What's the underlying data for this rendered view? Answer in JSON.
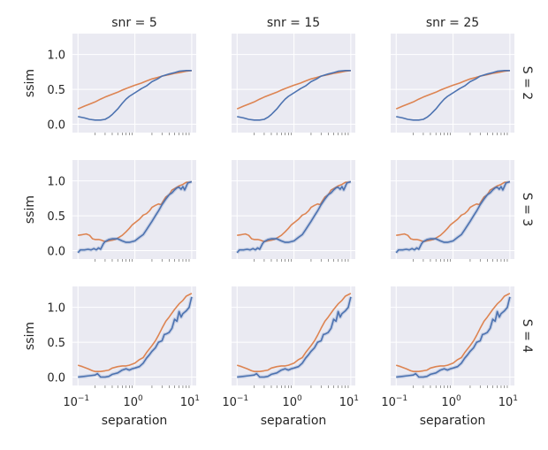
{
  "colors": {
    "background": "#eaeaf2",
    "grid": "#ffffff",
    "series_blue": "#4c72b0",
    "series_orange": "#dd8452"
  },
  "chart_data": {
    "type": "line",
    "layout": "facet-grid 3x3",
    "xscale": "log",
    "xlim": [
      0.08,
      12
    ],
    "ylim": [
      -0.12,
      1.3
    ],
    "xticks": [
      0.1,
      1,
      10
    ],
    "xtick_labels": [
      {
        "base": "10",
        "exp": "−1"
      },
      {
        "base": "10",
        "exp": "0"
      },
      {
        "base": "10",
        "exp": "1"
      }
    ],
    "yticks": [
      0,
      0.5,
      1
    ],
    "ytick_labels": [
      "0.0",
      "0.5",
      "1.0"
    ],
    "xlabel": "separation",
    "ylabel": "ssim",
    "col_titles": [
      "snr = 5",
      "snr = 15",
      "snr = 25"
    ],
    "row_titles": [
      "S = 2",
      "S = 3",
      "S = 4"
    ],
    "grid": true,
    "rows": [
      {
        "blue": [
          [
            0.1,
            0.11
          ],
          [
            0.13,
            0.09
          ],
          [
            0.16,
            0.07
          ],
          [
            0.2,
            0.06
          ],
          [
            0.25,
            0.06
          ],
          [
            0.3,
            0.07
          ],
          [
            0.35,
            0.1
          ],
          [
            0.4,
            0.14
          ],
          [
            0.5,
            0.22
          ],
          [
            0.6,
            0.3
          ],
          [
            0.7,
            0.36
          ],
          [
            0.8,
            0.4
          ],
          [
            1.0,
            0.45
          ],
          [
            1.3,
            0.51
          ],
          [
            1.6,
            0.55
          ],
          [
            2.0,
            0.61
          ],
          [
            2.5,
            0.65
          ],
          [
            3.0,
            0.69
          ],
          [
            4.0,
            0.72
          ],
          [
            5.0,
            0.74
          ],
          [
            6.0,
            0.76
          ],
          [
            8.0,
            0.77
          ],
          [
            10.0,
            0.77
          ]
        ],
        "orange": [
          [
            0.1,
            0.22
          ],
          [
            0.13,
            0.26
          ],
          [
            0.16,
            0.29
          ],
          [
            0.2,
            0.32
          ],
          [
            0.25,
            0.36
          ],
          [
            0.3,
            0.39
          ],
          [
            0.4,
            0.43
          ],
          [
            0.5,
            0.46
          ],
          [
            0.6,
            0.49
          ],
          [
            0.8,
            0.53
          ],
          [
            1.0,
            0.56
          ],
          [
            1.3,
            0.59
          ],
          [
            1.6,
            0.62
          ],
          [
            2.0,
            0.65
          ],
          [
            2.5,
            0.67
          ],
          [
            3.0,
            0.69
          ],
          [
            4.0,
            0.71
          ],
          [
            5.0,
            0.73
          ],
          [
            6.0,
            0.74
          ],
          [
            8.0,
            0.76
          ],
          [
            10.0,
            0.77
          ]
        ]
      },
      {
        "blue": [
          [
            0.1,
            -0.03
          ],
          [
            0.11,
            0.01
          ],
          [
            0.13,
            0.01
          ],
          [
            0.15,
            0.02
          ],
          [
            0.17,
            0.01
          ],
          [
            0.19,
            0.03
          ],
          [
            0.21,
            0.01
          ],
          [
            0.23,
            0.04
          ],
          [
            0.25,
            0.02
          ],
          [
            0.28,
            0.1
          ],
          [
            0.3,
            0.13
          ],
          [
            0.35,
            0.16
          ],
          [
            0.4,
            0.17
          ],
          [
            0.5,
            0.17
          ],
          [
            0.6,
            0.14
          ],
          [
            0.7,
            0.12
          ],
          [
            0.8,
            0.12
          ],
          [
            1.0,
            0.14
          ],
          [
            1.2,
            0.19
          ],
          [
            1.4,
            0.23
          ],
          [
            1.6,
            0.3
          ],
          [
            2.0,
            0.42
          ],
          [
            2.3,
            0.5
          ],
          [
            2.6,
            0.57
          ],
          [
            3.0,
            0.66
          ],
          [
            3.5,
            0.74
          ],
          [
            4.0,
            0.8
          ],
          [
            4.5,
            0.83
          ],
          [
            5.0,
            0.87
          ],
          [
            5.5,
            0.9
          ],
          [
            6.0,
            0.91
          ],
          [
            6.5,
            0.88
          ],
          [
            7.0,
            0.92
          ],
          [
            7.5,
            0.87
          ],
          [
            8.5,
            0.97
          ],
          [
            10.0,
            0.99
          ]
        ],
        "orange": [
          [
            0.1,
            0.22
          ],
          [
            0.12,
            0.23
          ],
          [
            0.14,
            0.24
          ],
          [
            0.16,
            0.22
          ],
          [
            0.18,
            0.17
          ],
          [
            0.2,
            0.16
          ],
          [
            0.23,
            0.16
          ],
          [
            0.26,
            0.15
          ],
          [
            0.3,
            0.13
          ],
          [
            0.35,
            0.14
          ],
          [
            0.4,
            0.15
          ],
          [
            0.45,
            0.16
          ],
          [
            0.5,
            0.18
          ],
          [
            0.6,
            0.22
          ],
          [
            0.7,
            0.27
          ],
          [
            0.8,
            0.32
          ],
          [
            0.9,
            0.37
          ],
          [
            1.0,
            0.4
          ],
          [
            1.2,
            0.45
          ],
          [
            1.4,
            0.51
          ],
          [
            1.6,
            0.53
          ],
          [
            1.8,
            0.57
          ],
          [
            2.0,
            0.62
          ],
          [
            2.3,
            0.65
          ],
          [
            2.6,
            0.67
          ],
          [
            2.9,
            0.66
          ],
          [
            3.2,
            0.72
          ],
          [
            3.5,
            0.77
          ],
          [
            4.0,
            0.8
          ],
          [
            4.5,
            0.87
          ],
          [
            5.0,
            0.89
          ],
          [
            5.5,
            0.91
          ],
          [
            6.0,
            0.93
          ],
          [
            7.0,
            0.95
          ],
          [
            8.0,
            0.98
          ],
          [
            9.0,
            0.98
          ],
          [
            10.0,
            0.99
          ]
        ]
      },
      {
        "blue": [
          [
            0.1,
            0.0
          ],
          [
            0.13,
            0.01
          ],
          [
            0.16,
            0.02
          ],
          [
            0.2,
            0.03
          ],
          [
            0.22,
            0.05
          ],
          [
            0.25,
            0.0
          ],
          [
            0.3,
            0.0
          ],
          [
            0.35,
            0.01
          ],
          [
            0.4,
            0.04
          ],
          [
            0.5,
            0.06
          ],
          [
            0.6,
            0.1
          ],
          [
            0.7,
            0.12
          ],
          [
            0.8,
            0.1
          ],
          [
            0.9,
            0.12
          ],
          [
            1.0,
            0.13
          ],
          [
            1.2,
            0.15
          ],
          [
            1.4,
            0.2
          ],
          [
            1.6,
            0.27
          ],
          [
            1.8,
            0.32
          ],
          [
            2.0,
            0.37
          ],
          [
            2.3,
            0.42
          ],
          [
            2.6,
            0.5
          ],
          [
            3.0,
            0.52
          ],
          [
            3.3,
            0.61
          ],
          [
            3.6,
            0.62
          ],
          [
            4.0,
            0.64
          ],
          [
            4.5,
            0.7
          ],
          [
            5.0,
            0.83
          ],
          [
            5.5,
            0.8
          ],
          [
            6.0,
            0.94
          ],
          [
            6.5,
            0.86
          ],
          [
            7.0,
            0.91
          ],
          [
            8.0,
            0.95
          ],
          [
            9.0,
            1.0
          ],
          [
            10.0,
            1.15
          ]
        ],
        "orange": [
          [
            0.1,
            0.17
          ],
          [
            0.12,
            0.15
          ],
          [
            0.15,
            0.12
          ],
          [
            0.18,
            0.09
          ],
          [
            0.2,
            0.08
          ],
          [
            0.25,
            0.08
          ],
          [
            0.3,
            0.09
          ],
          [
            0.35,
            0.1
          ],
          [
            0.4,
            0.13
          ],
          [
            0.5,
            0.15
          ],
          [
            0.6,
            0.16
          ],
          [
            0.7,
            0.16
          ],
          [
            0.8,
            0.17
          ],
          [
            1.0,
            0.2
          ],
          [
            1.2,
            0.25
          ],
          [
            1.4,
            0.28
          ],
          [
            1.6,
            0.35
          ],
          [
            2.0,
            0.45
          ],
          [
            2.3,
            0.52
          ],
          [
            2.6,
            0.6
          ],
          [
            3.0,
            0.7
          ],
          [
            3.5,
            0.8
          ],
          [
            4.0,
            0.86
          ],
          [
            5.0,
            0.97
          ],
          [
            6.0,
            1.05
          ],
          [
            7.0,
            1.1
          ],
          [
            8.0,
            1.16
          ],
          [
            10.0,
            1.2
          ]
        ]
      }
    ]
  }
}
